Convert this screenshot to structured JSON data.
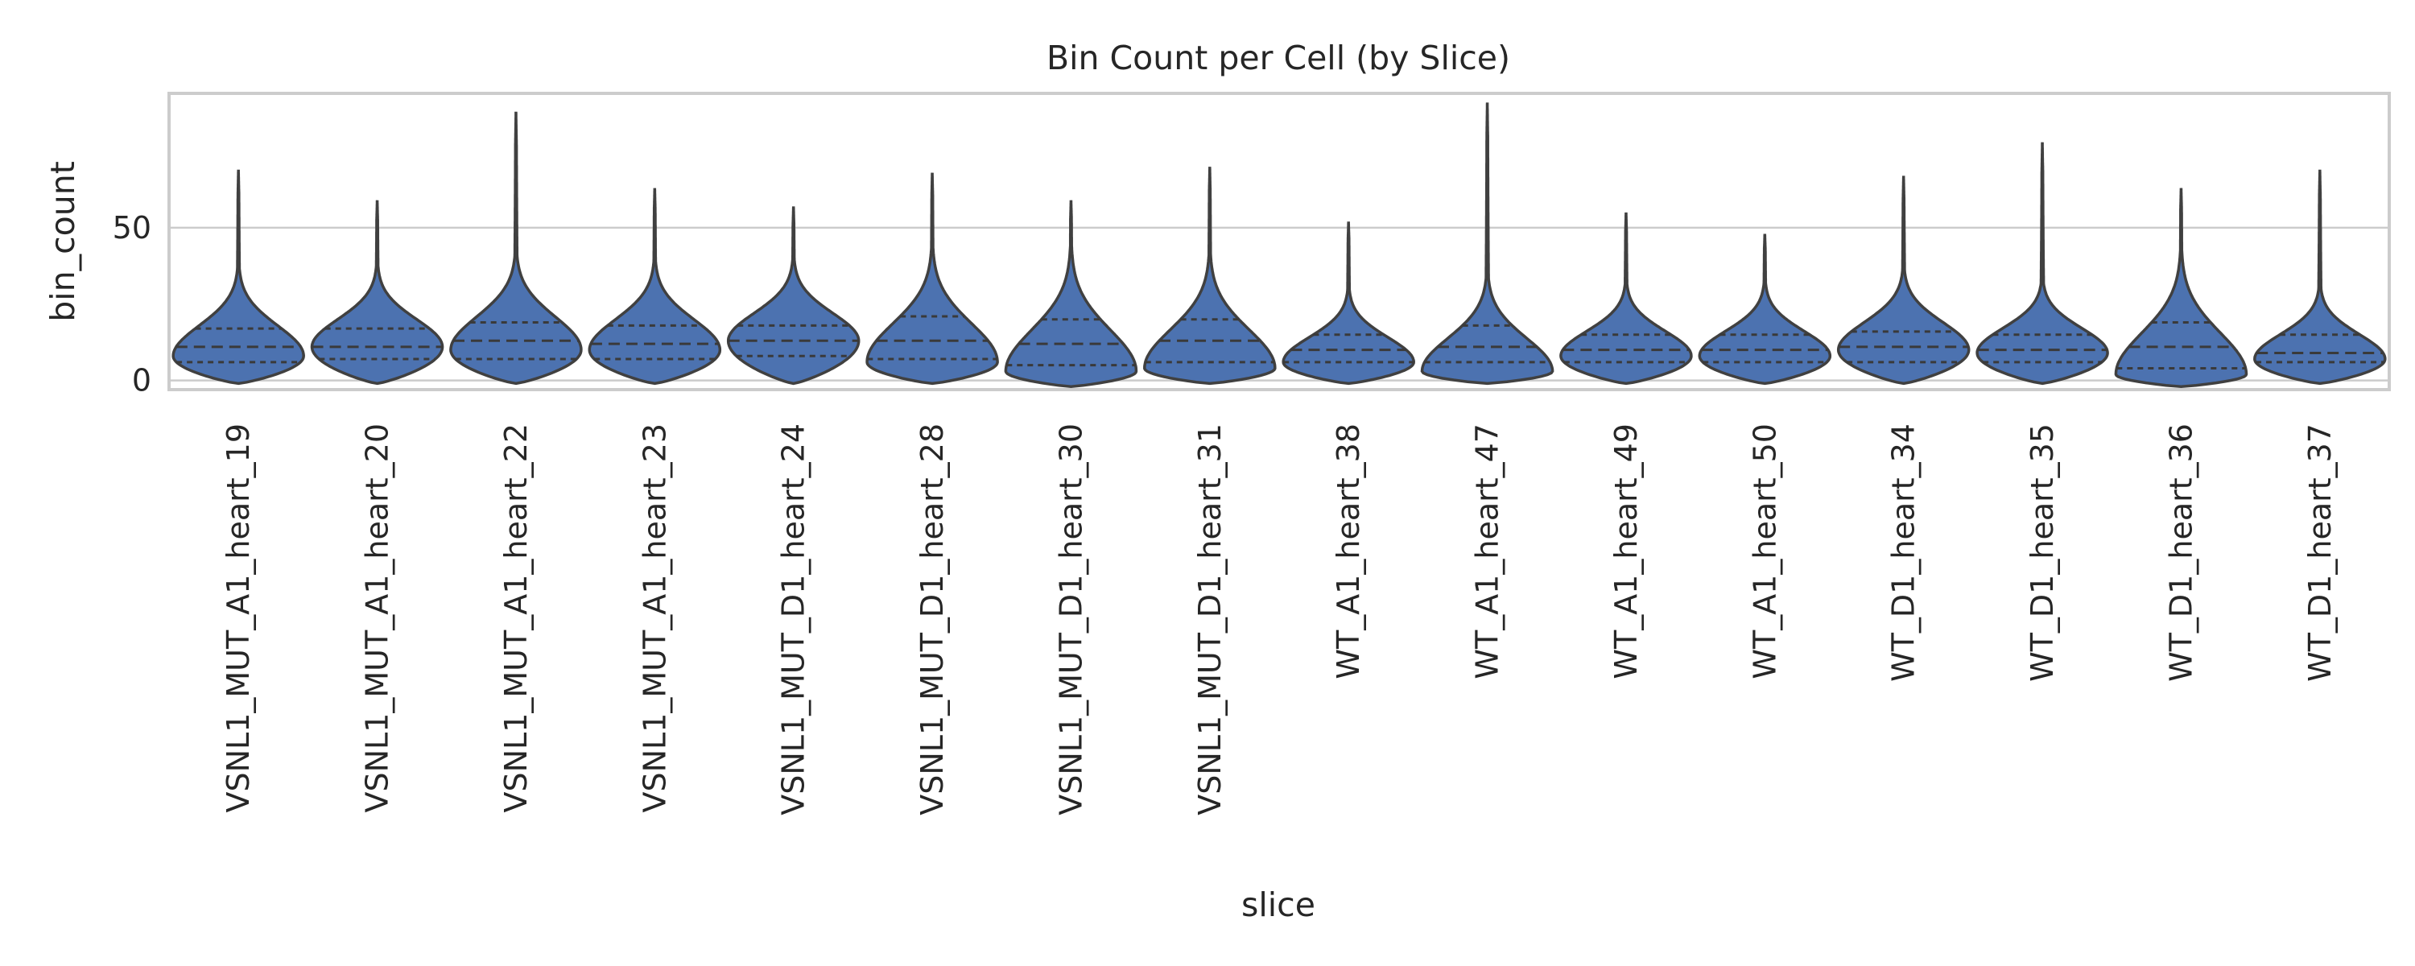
{
  "chart_data": {
    "type": "violin",
    "title": "Bin Count per Cell (by Slice)",
    "xlabel": "slice",
    "ylabel": "bin_count",
    "ylim": [
      -3,
      94
    ],
    "yticks": [
      0,
      50
    ],
    "grid": true,
    "color": "#4c72b0",
    "inner": "quartile",
    "categories": [
      "VSNL1_MUT_A1_heart_19",
      "VSNL1_MUT_A1_heart_20",
      "VSNL1_MUT_A1_heart_22",
      "VSNL1_MUT_A1_heart_23",
      "VSNL1_MUT_D1_heart_24",
      "VSNL1_MUT_D1_heart_28",
      "VSNL1_MUT_D1_heart_30",
      "VSNL1_MUT_D1_heart_31",
      "WT_A1_heart_38",
      "WT_A1_heart_47",
      "WT_A1_heart_49",
      "WT_A1_heart_50",
      "WT_D1_heart_34",
      "WT_D1_heart_35",
      "WT_D1_heart_36",
      "WT_D1_heart_37"
    ],
    "distributions": [
      {
        "min": -1,
        "q1": 6,
        "median": 11,
        "q3": 17,
        "max": 69,
        "mode": 8
      },
      {
        "min": -1,
        "q1": 7,
        "median": 11,
        "q3": 17,
        "max": 59,
        "mode": 11
      },
      {
        "min": -1,
        "q1": 7,
        "median": 13,
        "q3": 19,
        "max": 88,
        "mode": 10
      },
      {
        "min": -1,
        "q1": 7,
        "median": 12,
        "q3": 18,
        "max": 63,
        "mode": 10
      },
      {
        "min": -1,
        "q1": 8,
        "median": 13,
        "q3": 18,
        "max": 57,
        "mode": 13
      },
      {
        "min": -1,
        "q1": 7,
        "median": 13,
        "q3": 21,
        "max": 68,
        "mode": 6
      },
      {
        "min": -2,
        "q1": 5,
        "median": 12,
        "q3": 20,
        "max": 59,
        "mode": 3
      },
      {
        "min": -1,
        "q1": 6,
        "median": 13,
        "q3": 20,
        "max": 70,
        "mode": 4
      },
      {
        "min": -1,
        "q1": 6,
        "median": 10,
        "q3": 15,
        "max": 52,
        "mode": 6
      },
      {
        "min": -1,
        "q1": 6,
        "median": 11,
        "q3": 18,
        "max": 91,
        "mode": 3
      },
      {
        "min": -1,
        "q1": 6,
        "median": 10,
        "q3": 15,
        "max": 55,
        "mode": 8
      },
      {
        "min": -1,
        "q1": 6,
        "median": 10,
        "q3": 15,
        "max": 48,
        "mode": 8
      },
      {
        "min": -1,
        "q1": 6,
        "median": 11,
        "q3": 16,
        "max": 67,
        "mode": 10
      },
      {
        "min": -1,
        "q1": 6,
        "median": 10,
        "q3": 15,
        "max": 78,
        "mode": 9
      },
      {
        "min": -2,
        "q1": 4,
        "median": 11,
        "q3": 19,
        "max": 63,
        "mode": 2
      },
      {
        "min": -1,
        "q1": 6,
        "median": 9,
        "q3": 15,
        "max": 69,
        "mode": 7
      }
    ]
  }
}
